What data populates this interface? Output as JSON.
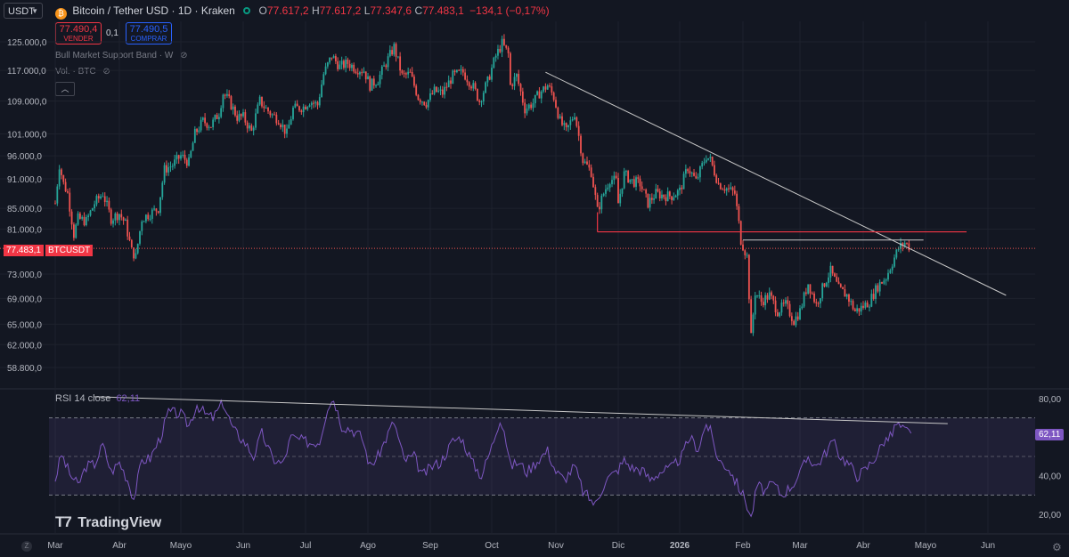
{
  "header": {
    "symbol_box": "USDT",
    "title": "Bitcoin / Tether USD · 1D · Kraken",
    "o_label": "O",
    "o_value": "77.617,2",
    "h_label": "H",
    "h_value": "77.617,2",
    "l_label": "L",
    "l_value": "77.347,6",
    "c_label": "C",
    "c_value": "77.483,1",
    "change": "−134,1 (−0,17%)"
  },
  "trade": {
    "sell_price": "77.490,4",
    "sell_label": "VENDER",
    "spread": "0,1",
    "buy_price": "77.490,5",
    "buy_label": "COMPRAR"
  },
  "indicators": {
    "bmsb": "Bull Market Support Band · W",
    "vol": "Vol. · BTC"
  },
  "rsi": {
    "label": "RSI 14 close",
    "value": "62,11"
  },
  "price_tag": {
    "value": "77.483,1",
    "symbol": "BTCUSDT"
  },
  "watermark": "TradingView",
  "colors": {
    "up": "#26a69a",
    "down": "#ef5350",
    "rsi": "#7e57c2",
    "bg": "#131722",
    "text": "#b2b5be",
    "trend": "#c8c8c8",
    "level": "#f23645"
  },
  "chart_data": {
    "type": "candlestick",
    "timeframe": "1D",
    "y_ticks": [
      125000,
      117000,
      109000,
      101000,
      96000,
      91000,
      85000,
      81000,
      73000,
      69000,
      65000,
      62000,
      58800
    ],
    "y_tick_labels": [
      "125.000,0",
      "117.000,0",
      "109.000,0",
      "101.000,0",
      "96.000,0",
      "91.000,0",
      "85.000,0",
      "81.000,0",
      "73.000,0",
      "69.000,0",
      "65.000,0",
      "62.000,0",
      "58.800,0"
    ],
    "x_labels": [
      "Mar",
      "Abr",
      "Mayo",
      "Jun",
      "Jul",
      "Ago",
      "Sep",
      "Oct",
      "Nov",
      "Dic",
      "2026",
      "Feb",
      "Mar",
      "Abr",
      "Mayo",
      "Jun"
    ],
    "x_label_dates": [
      "2025-03-01",
      "2025-04-01",
      "2025-05-01",
      "2025-06-01",
      "2025-07-01",
      "2025-08-01",
      "2025-09-01",
      "2025-10-01",
      "2025-11-01",
      "2025-12-01",
      "2026-01-01",
      "2026-02-01",
      "2026-03-01",
      "2026-04-01",
      "2026-05-01",
      "2026-06-01"
    ],
    "x_range": [
      "2025-03-01",
      "2026-06-10"
    ],
    "last_price": 77483.1,
    "price_path": [
      [
        "2025-03-01",
        86000
      ],
      [
        "2025-03-03",
        94000
      ],
      [
        "2025-03-05",
        90000
      ],
      [
        "2025-03-07",
        88000
      ],
      [
        "2025-03-10",
        80000
      ],
      [
        "2025-03-12",
        83000
      ],
      [
        "2025-03-16",
        82500
      ],
      [
        "2025-03-20",
        86000
      ],
      [
        "2025-03-24",
        88000
      ],
      [
        "2025-03-28",
        83000
      ],
      [
        "2025-04-01",
        84000
      ],
      [
        "2025-04-04",
        82000
      ],
      [
        "2025-04-07",
        77000
      ],
      [
        "2025-04-09",
        76000
      ],
      [
        "2025-04-12",
        83000
      ],
      [
        "2025-04-16",
        84000
      ],
      [
        "2025-04-20",
        85000
      ],
      [
        "2025-04-23",
        93000
      ],
      [
        "2025-04-27",
        94000
      ],
      [
        "2025-05-01",
        96000
      ],
      [
        "2025-05-05",
        94500
      ],
      [
        "2025-05-08",
        101000
      ],
      [
        "2025-05-12",
        104000
      ],
      [
        "2025-05-16",
        103000
      ],
      [
        "2025-05-20",
        106000
      ],
      [
        "2025-05-22",
        111000
      ],
      [
        "2025-05-25",
        109000
      ],
      [
        "2025-05-29",
        105000
      ],
      [
        "2025-06-01",
        105000
      ],
      [
        "2025-06-05",
        101500
      ],
      [
        "2025-06-09",
        109000
      ],
      [
        "2025-06-12",
        107000
      ],
      [
        "2025-06-15",
        105500
      ],
      [
        "2025-06-18",
        104500
      ],
      [
        "2025-06-22",
        101000
      ],
      [
        "2025-06-25",
        107000
      ],
      [
        "2025-06-30",
        107500
      ],
      [
        "2025-07-03",
        109000
      ],
      [
        "2025-07-07",
        108000
      ],
      [
        "2025-07-10",
        116000
      ],
      [
        "2025-07-14",
        121000
      ],
      [
        "2025-07-18",
        118000
      ],
      [
        "2025-07-22",
        119000
      ],
      [
        "2025-07-26",
        117500
      ],
      [
        "2025-07-30",
        117000
      ],
      [
        "2025-08-02",
        113000
      ],
      [
        "2025-08-06",
        114500
      ],
      [
        "2025-08-10",
        119000
      ],
      [
        "2025-08-14",
        123500
      ],
      [
        "2025-08-18",
        115500
      ],
      [
        "2025-08-22",
        116000
      ],
      [
        "2025-08-26",
        110000
      ],
      [
        "2025-08-30",
        108500
      ],
      [
        "2025-09-03",
        111500
      ],
      [
        "2025-09-07",
        111000
      ],
      [
        "2025-09-12",
        115500
      ],
      [
        "2025-09-17",
        116500
      ],
      [
        "2025-09-22",
        112500
      ],
      [
        "2025-09-25",
        109000
      ],
      [
        "2025-09-29",
        114000
      ],
      [
        "2025-10-03",
        121000
      ],
      [
        "2025-10-06",
        124500
      ],
      [
        "2025-10-09",
        121500
      ],
      [
        "2025-10-10",
        113000
      ],
      [
        "2025-10-13",
        115500
      ],
      [
        "2025-10-17",
        107000
      ],
      [
        "2025-10-21",
        108500
      ],
      [
        "2025-10-24",
        111000
      ],
      [
        "2025-10-28",
        113000
      ],
      [
        "2025-10-31",
        110000
      ],
      [
        "2025-11-03",
        104000
      ],
      [
        "2025-11-06",
        101500
      ],
      [
        "2025-11-10",
        106000
      ],
      [
        "2025-11-14",
        95000
      ],
      [
        "2025-11-18",
        92500
      ],
      [
        "2025-11-21",
        84500
      ],
      [
        "2025-11-24",
        88000
      ],
      [
        "2025-11-27",
        91000
      ],
      [
        "2025-11-30",
        90500
      ],
      [
        "2025-12-01",
        86000
      ],
      [
        "2025-12-04",
        92000
      ],
      [
        "2025-12-08",
        90500
      ],
      [
        "2025-12-12",
        90000
      ],
      [
        "2025-12-16",
        86000
      ],
      [
        "2025-12-20",
        88000
      ],
      [
        "2025-12-24",
        87500
      ],
      [
        "2025-12-28",
        87500
      ],
      [
        "2026-01-01",
        88500
      ],
      [
        "2026-01-05",
        93500
      ],
      [
        "2026-01-09",
        90500
      ],
      [
        "2026-01-14",
        96000
      ],
      [
        "2026-01-16",
        95000
      ],
      [
        "2026-01-20",
        90000
      ],
      [
        "2026-01-24",
        89000
      ],
      [
        "2026-01-28",
        88000
      ],
      [
        "2026-01-31",
        79000
      ],
      [
        "2026-02-03",
        76000
      ],
      [
        "2026-02-05",
        63000
      ],
      [
        "2026-02-07",
        70000
      ],
      [
        "2026-02-10",
        68500
      ],
      [
        "2026-02-14",
        69500
      ],
      [
        "2026-02-18",
        67000
      ],
      [
        "2026-02-22",
        68000
      ],
      [
        "2026-02-26",
        65500
      ],
      [
        "2026-03-01",
        67000
      ],
      [
        "2026-03-05",
        71500
      ],
      [
        "2026-03-09",
        68000
      ],
      [
        "2026-03-13",
        71500
      ],
      [
        "2026-03-16",
        73500
      ],
      [
        "2026-03-20",
        70500
      ],
      [
        "2026-03-24",
        69500
      ],
      [
        "2026-03-28",
        67000
      ],
      [
        "2026-03-31",
        67500
      ],
      [
        "2026-04-04",
        68500
      ],
      [
        "2026-04-08",
        71000
      ],
      [
        "2026-04-12",
        72500
      ],
      [
        "2026-04-15",
        75000
      ],
      [
        "2026-04-18",
        77500
      ],
      [
        "2026-04-21",
        78500
      ],
      [
        "2026-04-24",
        77483
      ]
    ],
    "trendline": [
      [
        "2025-10-27",
        116500
      ],
      [
        "2026-06-10",
        69500
      ]
    ],
    "horizontal_level": {
      "value": 80500,
      "from": "2025-11-21",
      "to": "2026-06-01"
    },
    "horizontal_level_2": {
      "value": 79000,
      "from": "2026-02-01",
      "to": "2026-04-30"
    },
    "rsi": {
      "y_ticks": [
        80,
        40,
        20
      ],
      "y_tick_labels": [
        "80,00",
        "40,00",
        "20,00"
      ],
      "upper_band": 70,
      "lower_band": 30,
      "last_value": 62.11,
      "trendline": [
        [
          "2025-03-20",
          81
        ],
        [
          "2026-05-12",
          67
        ]
      ],
      "path": [
        [
          "2025-03-01",
          38
        ],
        [
          "2025-03-04",
          51
        ],
        [
          "2025-03-08",
          41
        ],
        [
          "2025-03-12",
          35
        ],
        [
          "2025-03-16",
          45
        ],
        [
          "2025-03-20",
          46
        ],
        [
          "2025-03-24",
          56
        ],
        [
          "2025-03-28",
          42
        ],
        [
          "2025-04-01",
          47
        ],
        [
          "2025-04-05",
          38
        ],
        [
          "2025-04-08",
          28
        ],
        [
          "2025-04-12",
          48
        ],
        [
          "2025-04-16",
          49
        ],
        [
          "2025-04-21",
          60
        ],
        [
          "2025-04-25",
          73
        ],
        [
          "2025-05-01",
          72
        ],
        [
          "2025-05-05",
          66
        ],
        [
          "2025-05-09",
          77
        ],
        [
          "2025-05-13",
          72
        ],
        [
          "2025-05-17",
          70
        ],
        [
          "2025-05-22",
          78
        ],
        [
          "2025-05-27",
          64
        ],
        [
          "2025-06-02",
          57
        ],
        [
          "2025-06-06",
          50
        ],
        [
          "2025-06-10",
          62
        ],
        [
          "2025-06-15",
          49
        ],
        [
          "2025-06-20",
          46
        ],
        [
          "2025-06-24",
          60
        ],
        [
          "2025-06-30",
          58
        ],
        [
          "2025-07-04",
          57
        ],
        [
          "2025-07-08",
          58
        ],
        [
          "2025-07-12",
          76
        ],
        [
          "2025-07-15",
          80
        ],
        [
          "2025-07-19",
          66
        ],
        [
          "2025-07-24",
          64
        ],
        [
          "2025-07-29",
          60
        ],
        [
          "2025-08-02",
          45
        ],
        [
          "2025-08-06",
          50
        ],
        [
          "2025-08-12",
          64
        ],
        [
          "2025-08-14",
          68
        ],
        [
          "2025-08-19",
          48
        ],
        [
          "2025-08-24",
          50
        ],
        [
          "2025-08-28",
          40
        ],
        [
          "2025-09-02",
          45
        ],
        [
          "2025-09-06",
          47
        ],
        [
          "2025-09-12",
          58
        ],
        [
          "2025-09-16",
          60
        ],
        [
          "2025-09-22",
          46
        ],
        [
          "2025-09-26",
          40
        ],
        [
          "2025-10-01",
          55
        ],
        [
          "2025-10-05",
          70
        ],
        [
          "2025-10-07",
          64
        ],
        [
          "2025-10-10",
          45
        ],
        [
          "2025-10-14",
          47
        ],
        [
          "2025-10-18",
          42
        ],
        [
          "2025-10-24",
          49
        ],
        [
          "2025-10-28",
          53
        ],
        [
          "2025-11-01",
          42
        ],
        [
          "2025-11-05",
          38
        ],
        [
          "2025-11-10",
          45
        ],
        [
          "2025-11-14",
          32
        ],
        [
          "2025-11-20",
          25
        ],
        [
          "2025-11-25",
          38
        ],
        [
          "2025-11-30",
          42
        ],
        [
          "2025-12-04",
          48
        ],
        [
          "2025-12-08",
          44
        ],
        [
          "2025-12-13",
          43
        ],
        [
          "2025-12-17",
          38
        ],
        [
          "2025-12-22",
          42
        ],
        [
          "2025-12-28",
          44
        ],
        [
          "2026-01-02",
          50
        ],
        [
          "2026-01-06",
          60
        ],
        [
          "2026-01-10",
          54
        ],
        [
          "2026-01-14",
          67
        ],
        [
          "2026-01-16",
          63
        ],
        [
          "2026-01-20",
          48
        ],
        [
          "2026-01-25",
          44
        ],
        [
          "2026-01-30",
          34
        ],
        [
          "2026-02-02",
          28
        ],
        [
          "2026-02-05",
          18
        ],
        [
          "2026-02-08",
          35
        ],
        [
          "2026-02-12",
          32
        ],
        [
          "2026-02-16",
          36
        ],
        [
          "2026-02-20",
          30
        ],
        [
          "2026-02-25",
          35
        ],
        [
          "2026-03-01",
          41
        ],
        [
          "2026-03-05",
          50
        ],
        [
          "2026-03-09",
          45
        ],
        [
          "2026-03-13",
          51
        ],
        [
          "2026-03-17",
          58
        ],
        [
          "2026-03-21",
          50
        ],
        [
          "2026-03-25",
          46
        ],
        [
          "2026-03-29",
          40
        ],
        [
          "2026-04-02",
          43
        ],
        [
          "2026-04-07",
          50
        ],
        [
          "2026-04-11",
          58
        ],
        [
          "2026-04-14",
          60
        ],
        [
          "2026-04-17",
          67
        ],
        [
          "2026-04-20",
          64
        ],
        [
          "2026-04-24",
          62
        ]
      ]
    }
  }
}
